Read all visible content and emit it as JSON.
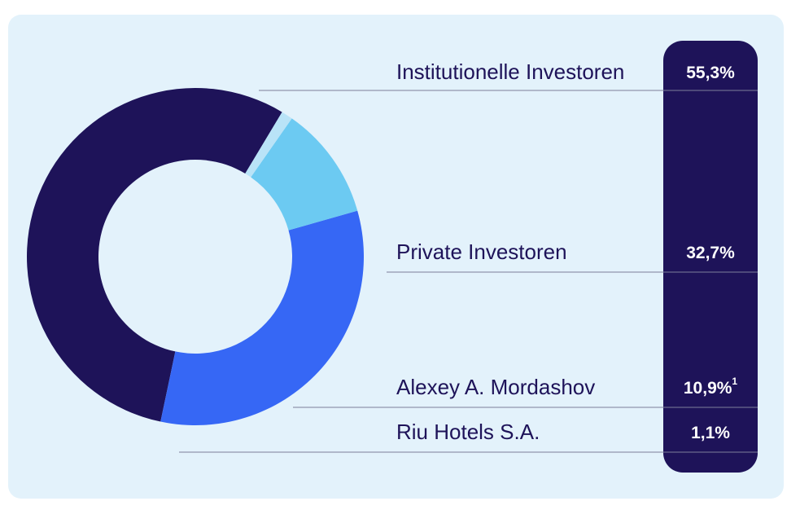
{
  "chart_data": {
    "type": "donut",
    "categories": [
      "Institutionelle Investoren",
      "Private Investoren",
      "Alexey A. Mordashov",
      "Riu Hotels S.A."
    ],
    "values": [
      55.3,
      32.7,
      10.9,
      1.1
    ],
    "value_labels": [
      "55,3%",
      "32,7%",
      "10,9%",
      "1,1%"
    ],
    "value_notes": [
      null,
      null,
      "1",
      null
    ],
    "colors": [
      "#1e1359",
      "#3667f5",
      "#6ccaf2",
      "#b9e3f7"
    ]
  }
}
